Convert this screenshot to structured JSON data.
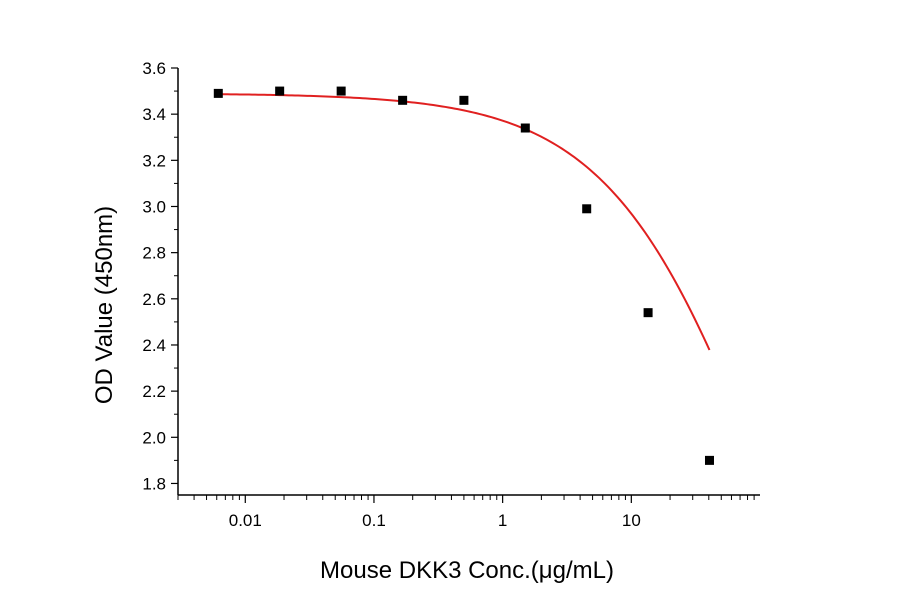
{
  "chart_data": {
    "type": "scatter",
    "title": "",
    "xlabel": "Mouse DKK3 Conc.(μg/mL)",
    "ylabel": "OD Value (450nm)",
    "x_scale": "log",
    "xlim": [
      0.003,
      100
    ],
    "ylim": [
      1.75,
      3.6
    ],
    "x_ticks": [
      0.01,
      0.1,
      1,
      10
    ],
    "x_tick_labels": [
      "0.01",
      "0.1",
      "1",
      "10"
    ],
    "y_ticks": [
      1.8,
      2.0,
      2.2,
      2.4,
      2.6,
      2.8,
      3.0,
      3.2,
      3.4,
      3.6
    ],
    "y_tick_labels": [
      "1.8",
      "2.0",
      "2.2",
      "2.4",
      "2.6",
      "2.8",
      "3.0",
      "3.2",
      "3.4",
      "3.6"
    ],
    "grid": false,
    "series": [
      {
        "marker": "square",
        "color": "#000000",
        "x": [
          0.00617,
          0.0185,
          0.0556,
          0.167,
          0.5,
          1.5,
          4.5,
          13.5,
          40.5
        ],
        "y": [
          3.49,
          3.5,
          3.5,
          3.46,
          3.46,
          3.34,
          2.99,
          2.54,
          1.9
        ]
      }
    ],
    "fit_curve": {
      "model": "4PL",
      "color": "#e02020",
      "top": 3.49,
      "bottom": 0.0,
      "ec50": 120,
      "hill": 0.7
    }
  }
}
